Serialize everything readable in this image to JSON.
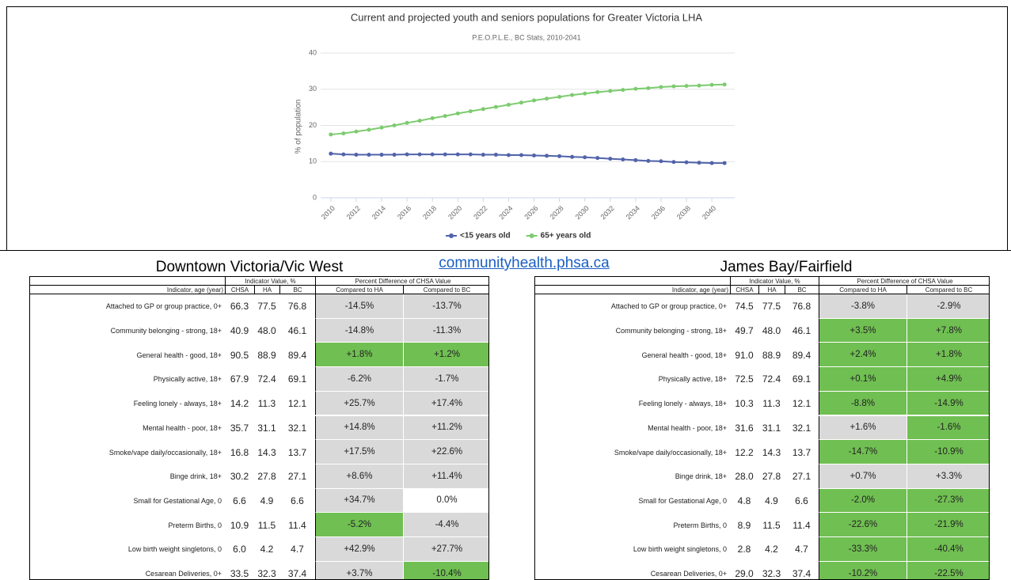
{
  "chart_data": {
    "type": "line",
    "title": "Current and projected youth and seniors populations for Greater Victoria LHA",
    "subtitle": "P.E.O.P.L.E., BC Stats, 2010-2041",
    "y_label": "% of population",
    "x": [
      2010,
      2011,
      2012,
      2013,
      2014,
      2015,
      2016,
      2017,
      2018,
      2019,
      2020,
      2021,
      2022,
      2023,
      2024,
      2025,
      2026,
      2027,
      2028,
      2029,
      2030,
      2031,
      2032,
      2033,
      2034,
      2035,
      2036,
      2037,
      2038,
      2039,
      2040,
      2041
    ],
    "series": [
      {
        "name": "<15 years old",
        "color": "#5163aa",
        "values": [
          12.2,
          12.0,
          11.9,
          11.9,
          11.9,
          11.9,
          12.0,
          12.0,
          12.0,
          12.0,
          12.0,
          12.0,
          11.9,
          11.9,
          11.8,
          11.8,
          11.7,
          11.6,
          11.5,
          11.3,
          11.2,
          11.0,
          10.8,
          10.6,
          10.4,
          10.2,
          10.1,
          9.9,
          9.8,
          9.7,
          9.6,
          9.6
        ]
      },
      {
        "name": "65+ years old",
        "color": "#7dcb6f",
        "values": [
          17.5,
          17.8,
          18.3,
          18.8,
          19.4,
          20.0,
          20.7,
          21.3,
          22.0,
          22.6,
          23.3,
          23.9,
          24.5,
          25.1,
          25.7,
          26.3,
          26.9,
          27.4,
          27.9,
          28.4,
          28.8,
          29.2,
          29.5,
          29.8,
          30.1,
          30.3,
          30.6,
          30.8,
          30.9,
          31.0,
          31.2,
          31.3
        ]
      }
    ],
    "xlim": [
      2009.2,
      2041.8
    ],
    "xticks": [
      2010,
      2012,
      2014,
      2016,
      2018,
      2020,
      2022,
      2024,
      2026,
      2028,
      2030,
      2032,
      2034,
      2036,
      2038,
      2040
    ],
    "ylim": [
      0,
      40
    ],
    "yticks": [
      0,
      10,
      20,
      30,
      40
    ],
    "grid": true,
    "legend": "bottom"
  },
  "link": "communityhealth.phsa.ca",
  "fill_colors": {
    "green": "#70bf52",
    "gray": "#d9d9d9",
    "white": "#ffffff"
  },
  "tables": [
    {
      "title": "Downtown Victoria/Vic West",
      "groups": [
        "Indicator Value, %",
        "Percent Difference of CHSA Value"
      ],
      "columns": [
        "Indicator, age (year)",
        "CHSA",
        "HA",
        "BC",
        "Compared to HA",
        "Compared to BC"
      ],
      "rows": [
        {
          "cells": [
            "Attached to GP or group practice, 0+",
            "66.3",
            "77.5",
            "76.8",
            "-14.5%",
            "-13.7%"
          ],
          "fills": [
            "gray",
            "gray"
          ]
        },
        {
          "cells": [
            "Community belonging - strong, 18+",
            "40.9",
            "48.0",
            "46.1",
            "-14.8%",
            "-11.3%"
          ],
          "fills": [
            "gray",
            "gray"
          ]
        },
        {
          "cells": [
            "General health - good, 18+",
            "90.5",
            "88.9",
            "89.4",
            "+1.8%",
            "+1.2%"
          ],
          "fills": [
            "green",
            "green"
          ]
        },
        {
          "cells": [
            "Physically active, 18+",
            "67.9",
            "72.4",
            "69.1",
            "-6.2%",
            "-1.7%"
          ],
          "fills": [
            "gray",
            "gray"
          ]
        },
        {
          "cells": [
            "Feeling lonely - always, 18+",
            "14.2",
            "11.3",
            "12.1",
            "+25.7%",
            "+17.4%"
          ],
          "fills": [
            "gray",
            "gray"
          ]
        },
        {
          "cells": [
            "Mental health - poor, 18+",
            "35.7",
            "31.1",
            "32.1",
            "+14.8%",
            "+11.2%"
          ],
          "fills": [
            "gray",
            "gray"
          ]
        },
        {
          "cells": [
            "Smoke/vape daily/occasionally, 18+",
            "16.8",
            "14.3",
            "13.7",
            "+17.5%",
            "+22.6%"
          ],
          "fills": [
            "gray",
            "gray"
          ]
        },
        {
          "cells": [
            "Binge drink, 18+",
            "30.2",
            "27.8",
            "27.1",
            "+8.6%",
            "+11.4%"
          ],
          "fills": [
            "gray",
            "gray"
          ]
        },
        {
          "cells": [
            "Small for Gestational Age, 0",
            "6.6",
            "4.9",
            "6.6",
            "+34.7%",
            "0.0%"
          ],
          "fills": [
            "gray",
            "white"
          ]
        },
        {
          "cells": [
            "Preterm Births, 0",
            "10.9",
            "11.5",
            "11.4",
            "-5.2%",
            "-4.4%"
          ],
          "fills": [
            "green",
            "gray"
          ]
        },
        {
          "cells": [
            "Low birth weight singletons, 0",
            "6.0",
            "4.2",
            "4.7",
            "+42.9%",
            "+27.7%"
          ],
          "fills": [
            "gray",
            "gray"
          ]
        },
        {
          "cells": [
            "Cesarean Deliveries, 0+",
            "33.5",
            "32.3",
            "37.4",
            "+3.7%",
            "-10.4%"
          ],
          "fills": [
            "gray",
            "green"
          ]
        }
      ]
    },
    {
      "title": "James Bay/Fairfield",
      "groups": [
        "Indicator Value, %",
        "Percent Difference of CHSA Value"
      ],
      "columns": [
        "Indicator, age (year)",
        "CHSA",
        "HA",
        "BC",
        "Compared to HA",
        "Compared to BC"
      ],
      "rows": [
        {
          "cells": [
            "Attached to GP or group practice, 0+",
            "74.5",
            "77.5",
            "76.8",
            "-3.8%",
            "-2.9%"
          ],
          "fills": [
            "gray",
            "gray"
          ]
        },
        {
          "cells": [
            "Community belonging - strong, 18+",
            "49.7",
            "48.0",
            "46.1",
            "+3.5%",
            "+7.8%"
          ],
          "fills": [
            "green",
            "green"
          ]
        },
        {
          "cells": [
            "General health - good, 18+",
            "91.0",
            "88.9",
            "89.4",
            "+2.4%",
            "+1.8%"
          ],
          "fills": [
            "green",
            "green"
          ]
        },
        {
          "cells": [
            "Physically active, 18+",
            "72.5",
            "72.4",
            "69.1",
            "+0.1%",
            "+4.9%"
          ],
          "fills": [
            "green",
            "green"
          ]
        },
        {
          "cells": [
            "Feeling lonely - always, 18+",
            "10.3",
            "11.3",
            "12.1",
            "-8.8%",
            "-14.9%"
          ],
          "fills": [
            "green",
            "green"
          ]
        },
        {
          "cells": [
            "Mental health - poor, 18+",
            "31.6",
            "31.1",
            "32.1",
            "+1.6%",
            "-1.6%"
          ],
          "fills": [
            "gray",
            "green"
          ]
        },
        {
          "cells": [
            "Smoke/vape daily/occasionally, 18+",
            "12.2",
            "14.3",
            "13.7",
            "-14.7%",
            "-10.9%"
          ],
          "fills": [
            "green",
            "green"
          ]
        },
        {
          "cells": [
            "Binge drink, 18+",
            "28.0",
            "27.8",
            "27.1",
            "+0.7%",
            "+3.3%"
          ],
          "fills": [
            "gray",
            "gray"
          ]
        },
        {
          "cells": [
            "Small for Gestational Age, 0",
            "4.8",
            "4.9",
            "6.6",
            "-2.0%",
            "-27.3%"
          ],
          "fills": [
            "green",
            "green"
          ]
        },
        {
          "cells": [
            "Preterm Births, 0",
            "8.9",
            "11.5",
            "11.4",
            "-22.6%",
            "-21.9%"
          ],
          "fills": [
            "green",
            "green"
          ]
        },
        {
          "cells": [
            "Low birth weight singletons, 0",
            "2.8",
            "4.2",
            "4.7",
            "-33.3%",
            "-40.4%"
          ],
          "fills": [
            "green",
            "green"
          ]
        },
        {
          "cells": [
            "Cesarean Deliveries, 0+",
            "29.0",
            "32.3",
            "37.4",
            "-10.2%",
            "-22.5%"
          ],
          "fills": [
            "green",
            "green"
          ]
        }
      ]
    }
  ]
}
